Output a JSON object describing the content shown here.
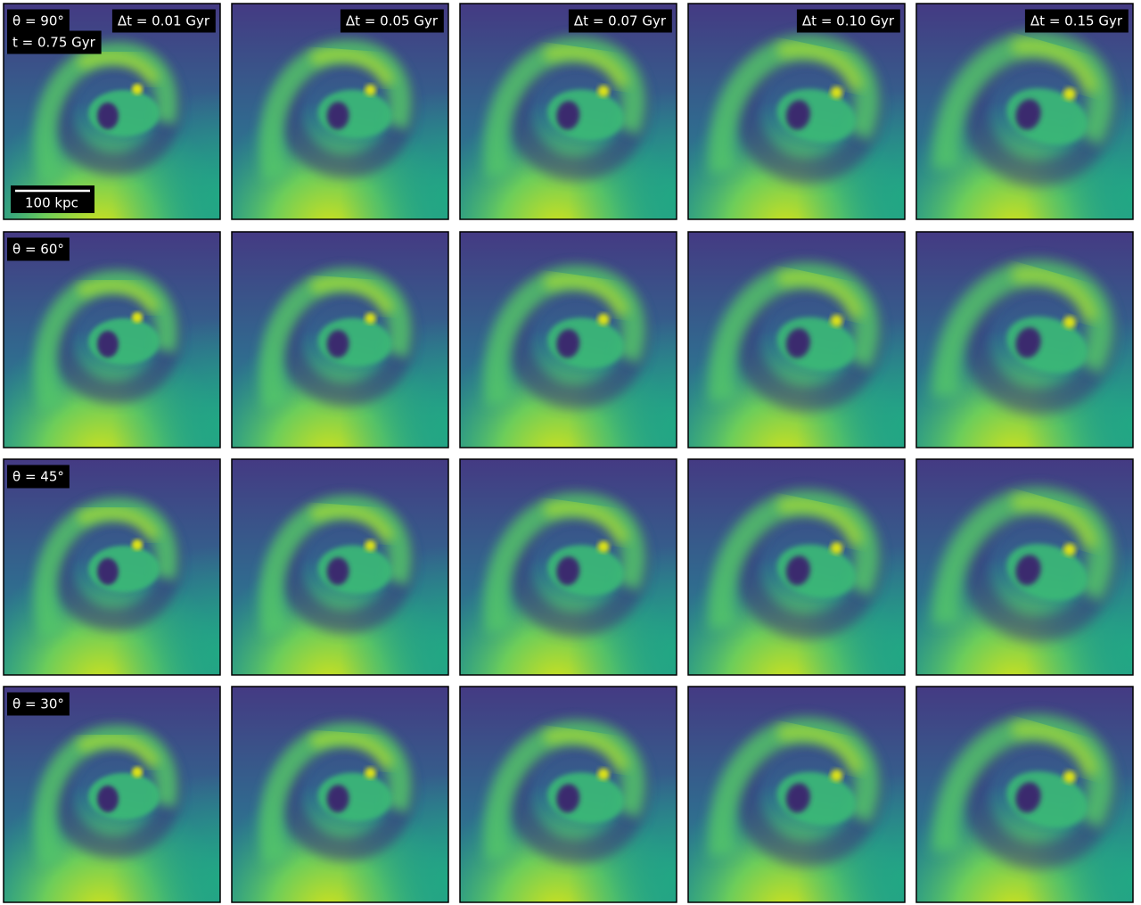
{
  "columns": [
    "Δt = 0.01 Gyr",
    "Δt = 0.05 Gyr",
    "Δt = 0.07 Gyr",
    "Δt = 0.10 Gyr",
    "Δt = 0.15 Gyr"
  ],
  "rows": [
    "θ = 90°",
    "θ = 60°",
    "θ = 45°",
    "θ = 30°"
  ],
  "time_label": "t = 0.75 Gyr",
  "scale_bar_label": "100 kpc"
}
